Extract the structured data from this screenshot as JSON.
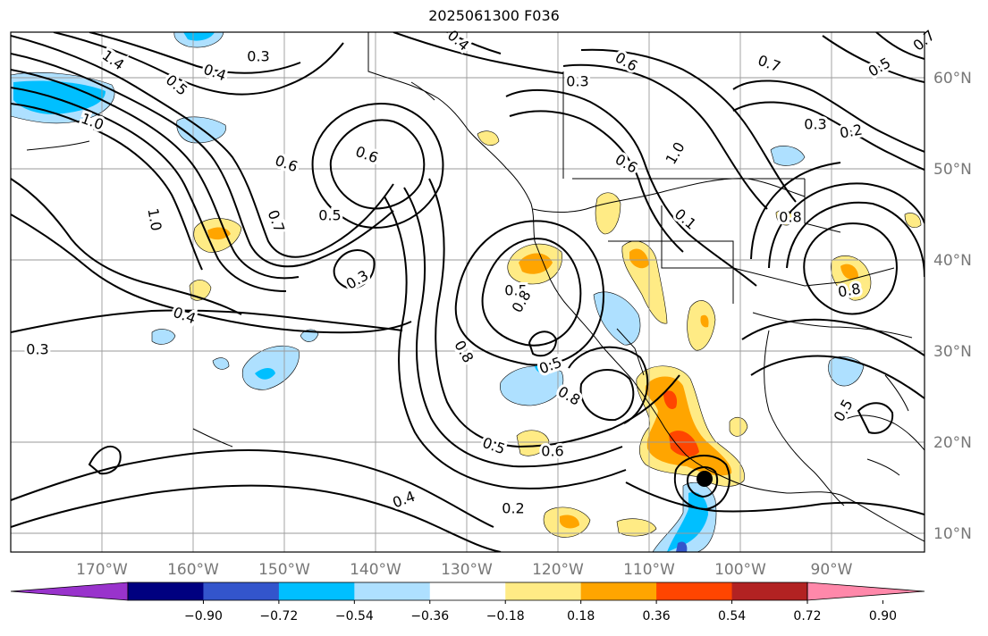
{
  "title": "2025061300 F036",
  "colors": {
    "land_outline": "#000000",
    "grid": "#9a9a9a",
    "contour": "#000000",
    "tick_label": "#777777"
  },
  "axes": {
    "lon_ticks": [
      "170°W",
      "160°W",
      "150°W",
      "140°W",
      "130°W",
      "120°W",
      "110°W",
      "100°W",
      "90°W"
    ],
    "lat_ticks": [
      "60°N",
      "50°N",
      "40°N",
      "30°N",
      "20°N",
      "10°N"
    ]
  },
  "colorbar": {
    "colors": [
      "#9933cc",
      "#000080",
      "#3355cc",
      "#00bfff",
      "#aee0ff",
      "#ffffff",
      "#ffeb85",
      "#ffa500",
      "#ff4500",
      "#b22222",
      "#ff88aa"
    ],
    "tick_labels": [
      "−0.90",
      "−0.72",
      "−0.54",
      "−0.36",
      "−0.18",
      "0.18",
      "0.36",
      "0.54",
      "0.72",
      "0.90"
    ],
    "extend": "both"
  },
  "contour_labels": [
    "1.4",
    "0.3",
    "0.4",
    "0.5",
    "1.0",
    "0.6",
    "0.7",
    "0.6",
    "0.5",
    "1.0",
    "0.3",
    "0.4",
    "0.3",
    "0.4",
    "0.7",
    "0.3",
    "0.6",
    "0.7",
    "1.0",
    "0.5",
    "0.8",
    "0.8",
    "0.5",
    "0.8",
    "0.6",
    "0.5",
    "0.2",
    "0.4",
    "0.6",
    "0.5",
    "0.3",
    "0.2",
    "0.8",
    "0.8",
    "0.5",
    "0.1"
  ]
}
